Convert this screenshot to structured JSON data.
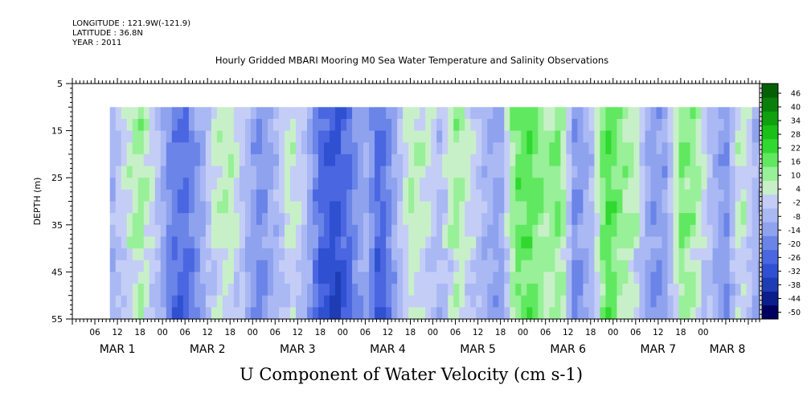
{
  "header": {
    "longitude": "LONGITUDE : 121.9W(-121.9)",
    "latitude": "LATITUDE : 36.8N",
    "year": "YEAR : 2011",
    "title": "Hourly Gridded MBARI Mooring M0 Sea Water Temperature and Salinity Observations"
  },
  "chart_data": {
    "type": "heatmap",
    "title": "U Component of Water Velocity (cm s-1)",
    "ylabel": "DEPTH (m)",
    "ylim": [
      55,
      5
    ],
    "yticks": [
      5,
      15,
      25,
      35,
      45,
      55
    ],
    "xlim_hours": [
      0,
      183
    ],
    "x_hour_ticks": [
      "06",
      "12",
      "18",
      "00",
      "06",
      "12",
      "18",
      "00",
      "06",
      "12",
      "18",
      "00",
      "06",
      "12",
      "18",
      "00",
      "06",
      "12",
      "18",
      "00",
      "06",
      "12",
      "18",
      "00",
      "06",
      "12",
      "18",
      "00"
    ],
    "x_day_labels": [
      "MAR 1",
      "MAR 2",
      "MAR 3",
      "MAR 4",
      "MAR 5",
      "MAR 6",
      "MAR 7",
      "MAR 8"
    ],
    "data_depth_range": [
      10,
      55
    ],
    "colorbar": {
      "levels": [
        -50,
        -44,
        -38,
        -32,
        -26,
        -20,
        -14,
        -8,
        -2,
        4,
        10,
        16,
        22,
        28,
        34,
        40,
        46
      ],
      "labeled_levels": [
        "46",
        "40",
        "34",
        "28",
        "22",
        "16",
        "10",
        "4",
        "-2",
        "-8",
        "-14",
        "-20",
        "-26",
        "-32",
        "-38",
        "-44",
        "-50"
      ],
      "colors": [
        "#000060",
        "#0a1e8c",
        "#1e3cb4",
        "#3050d2",
        "#4a66e0",
        "#6a84e8",
        "#8ea2ee",
        "#aab8f4",
        "#c4cdf6",
        "#c8f0c8",
        "#98f098",
        "#60e860",
        "#30d830",
        "#18c018",
        "#10a010",
        "#0a800a",
        "#056005"
      ]
    },
    "profile_hour_values": [
      {
        "h": 10,
        "v": -8
      },
      {
        "h": 14,
        "v": 4
      },
      {
        "h": 18,
        "v": 12
      },
      {
        "h": 22,
        "v": 2
      },
      {
        "h": 26,
        "v": -16
      },
      {
        "h": 30,
        "v": -20
      },
      {
        "h": 34,
        "v": -10
      },
      {
        "h": 38,
        "v": 6
      },
      {
        "h": 42,
        "v": 10
      },
      {
        "h": 46,
        "v": -4
      },
      {
        "h": 50,
        "v": -14
      },
      {
        "h": 54,
        "v": -6
      },
      {
        "h": 58,
        "v": 8
      },
      {
        "h": 62,
        "v": -2
      },
      {
        "h": 66,
        "v": -22
      },
      {
        "h": 70,
        "v": -28
      },
      {
        "h": 74,
        "v": -18
      },
      {
        "h": 78,
        "v": -6
      },
      {
        "h": 82,
        "v": -24
      },
      {
        "h": 86,
        "v": -8
      },
      {
        "h": 90,
        "v": 10
      },
      {
        "h": 94,
        "v": 6
      },
      {
        "h": 98,
        "v": -4
      },
      {
        "h": 102,
        "v": 12
      },
      {
        "h": 106,
        "v": 4
      },
      {
        "h": 110,
        "v": -6
      },
      {
        "h": 114,
        "v": -10
      },
      {
        "h": 118,
        "v": 18
      },
      {
        "h": 122,
        "v": 20
      },
      {
        "h": 126,
        "v": 12
      },
      {
        "h": 130,
        "v": 16
      },
      {
        "h": 134,
        "v": -14
      },
      {
        "h": 138,
        "v": -6
      },
      {
        "h": 142,
        "v": 22
      },
      {
        "h": 146,
        "v": 14
      },
      {
        "h": 150,
        "v": 8
      },
      {
        "h": 154,
        "v": -12
      },
      {
        "h": 158,
        "v": -10
      },
      {
        "h": 162,
        "v": 16
      },
      {
        "h": 166,
        "v": 12
      },
      {
        "h": 170,
        "v": -4
      },
      {
        "h": 174,
        "v": -14
      },
      {
        "h": 178,
        "v": 10
      },
      {
        "h": 182,
        "v": -6
      }
    ]
  }
}
